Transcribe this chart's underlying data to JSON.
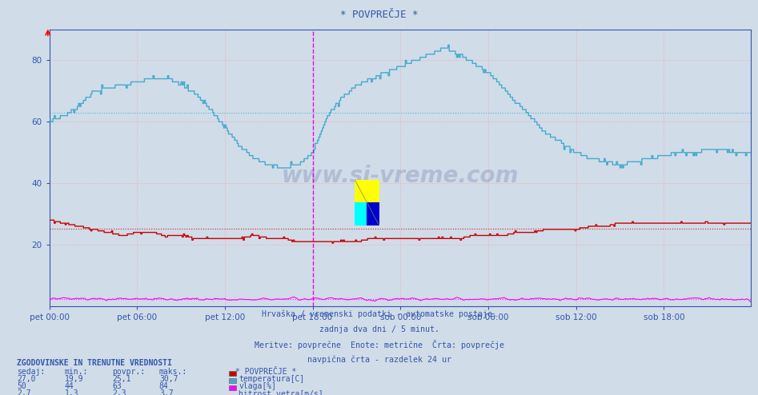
{
  "title": "* POVPREČJE *",
  "bg_color": "#d0dce8",
  "plot_bg_color": "#d0dce8",
  "x_labels": [
    "pet 00:00",
    "pet 06:00",
    "pet 12:00",
    "pet 18:00",
    "sob 00:00",
    "sob 06:00",
    "sob 12:00",
    "sob 18:00"
  ],
  "x_ticks_idx": [
    0,
    72,
    144,
    216,
    288,
    360,
    432,
    504
  ],
  "total_points": 576,
  "ylim": [
    0,
    90
  ],
  "yticks": [
    20,
    40,
    60,
    80
  ],
  "temp_color": "#cc0000",
  "humidity_color": "#44aacc",
  "wind_color": "#ff00ff",
  "avg_temp": 25.1,
  "avg_humidity": 63.0,
  "avg_wind": 2.3,
  "grid_color": "#ff9999",
  "vline_color": "#ee00ee",
  "vline_position": 216,
  "text_color": "#3355aa",
  "axis_color": "#3355aa",
  "subtitle1": "Hrvaška / vremenski podatki - avtomatske postaje.",
  "subtitle2": "zadnja dva dni / 5 minut.",
  "subtitle3": "Meritve: povprečne  Enote: metrične  Črta: povprečje",
  "subtitle4": "navpična črta - razdelek 24 ur",
  "table_header": "ZGODOVINSKE IN TRENUTNE VREDNOSTI",
  "col_headers": [
    "sedaj:",
    "min.:",
    "povpr.:",
    "maks.:"
  ],
  "row1": [
    "27,0",
    "19,9",
    "25,1",
    "30,7"
  ],
  "row2": [
    "50",
    "44",
    "63",
    "84"
  ],
  "row3": [
    "2,7",
    "1,3",
    "2,3",
    "3,7"
  ],
  "legend_title": "* POVPREČJE *",
  "legend_labels": [
    "temperatura[C]",
    "vlaga[%]",
    "hitrost vetra[m/s]"
  ],
  "legend_colors": [
    "#cc0000",
    "#44aacc",
    "#ff00ff"
  ]
}
